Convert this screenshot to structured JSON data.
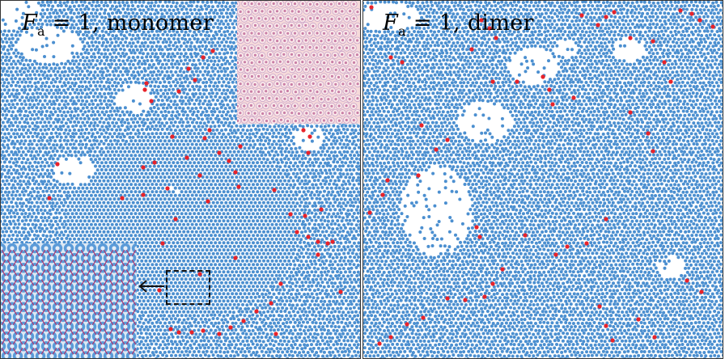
{
  "panels": [
    {
      "id": "monomer",
      "label_symbol": "F",
      "label_subscript": "a",
      "label_rest": " = 1, monomer"
    },
    {
      "id": "dimer",
      "label_symbol": "F",
      "label_subscript": "a",
      "label_rest": " = 1, dimer"
    }
  ],
  "colors": {
    "particle": "#4b8fd0",
    "defect": "#e8232a",
    "background": "#ffffff",
    "inset_bond": "#b0306a",
    "zoom_box": "#111111"
  },
  "icons": {
    "arrow": "left-arrow-icon"
  }
}
